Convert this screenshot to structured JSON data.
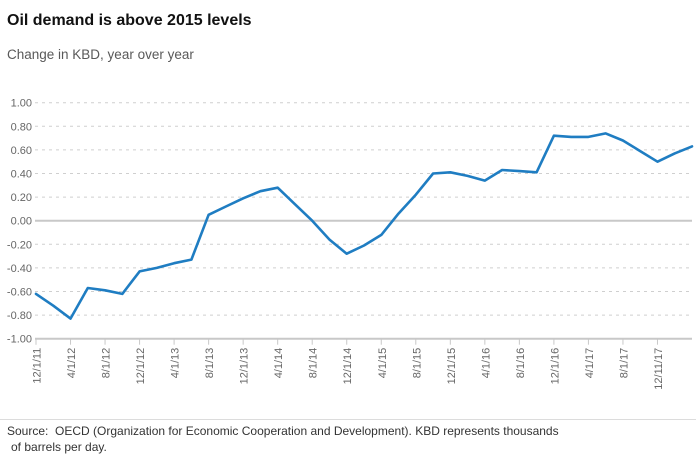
{
  "chart_data": {
    "type": "line",
    "title": "Oil demand is above 2015 levels",
    "subtitle": "Change in KBD, year over year",
    "ylim": [
      -1.0,
      1.0
    ],
    "y_tick_labels": [
      "1.00",
      "0.80",
      "0.60",
      "0.40",
      "0.20",
      "0.00",
      "-0.20",
      "-0.40",
      "-0.60",
      "-0.80",
      "-1.00"
    ],
    "x_tick_labels": [
      "12/1/11",
      "4/1/12",
      "8/1/12",
      "12/1/12",
      "4/1/13",
      "8/1/13",
      "12/1/13",
      "4/1/14",
      "8/1/14",
      "12/1/14",
      "4/1/15",
      "8/1/15",
      "12/1/15",
      "4/1/16",
      "8/1/16",
      "12/1/16",
      "4/1/17",
      "8/1/17",
      "12/11/17"
    ],
    "label_stride": 2,
    "grid": "horizontal dashed, solid zero line, legend none",
    "series": [
      {
        "name": "Change in KBD, year over year",
        "color": "#1f7dc2",
        "values": [
          -0.62,
          -0.72,
          -0.83,
          -0.57,
          -0.59,
          -0.62,
          -0.43,
          -0.4,
          -0.36,
          -0.33,
          0.05,
          0.12,
          0.19,
          0.25,
          0.28,
          0.14,
          0.0,
          -0.16,
          -0.28,
          -0.21,
          -0.12,
          0.06,
          0.22,
          0.4,
          0.41,
          0.38,
          0.34,
          0.43,
          0.42,
          0.41,
          0.72,
          0.71,
          0.71,
          0.74,
          0.68,
          0.59,
          0.5,
          0.57,
          0.63
        ]
      }
    ]
  },
  "footer": {
    "line1": "Source:  OECD (Organization for Economic Cooperation and Development). KBD represents thousands",
    "line2": "of barrels per day."
  },
  "colors": {
    "line": "#1f7dc2",
    "grid_dashed": "#cfcfcf",
    "grid_zero": "#c8c8c8",
    "axis": "#c8c8c8",
    "tick_text": "#666666",
    "title_text": "#111111",
    "subtitle_text": "#595959",
    "source_text": "#333333"
  }
}
